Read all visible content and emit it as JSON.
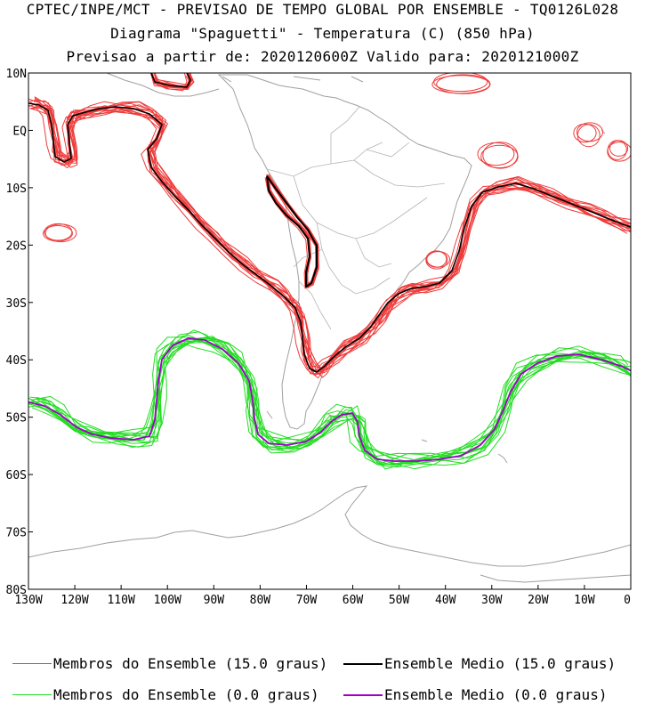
{
  "header": {
    "line1": "CPTEC/INPE/MCT - PREVISAO DE TEMPO GLOBAL POR ENSEMBLE - TQ0126L028",
    "line2": "Diagrama \"Spaguetti\" - Temperatura (C) (850 hPa)",
    "line3": "Previsao a partir de: 2020120600Z  Valido para: 2020121000Z"
  },
  "map": {
    "lat_labels": [
      "10N",
      "EQ",
      "10S",
      "20S",
      "30S",
      "40S",
      "50S",
      "60S",
      "70S",
      "80S"
    ],
    "lat_values": [
      10,
      0,
      -10,
      -20,
      -30,
      -40,
      -50,
      -60,
      -70,
      -80
    ],
    "lon_labels": [
      "130W",
      "120W",
      "110W",
      "100W",
      "90W",
      "80W",
      "70W",
      "60W",
      "50W",
      "40W",
      "30W",
      "20W",
      "10W",
      "0"
    ],
    "lon_values": [
      -130,
      -120,
      -110,
      -100,
      -90,
      -80,
      -70,
      -60,
      -50,
      -40,
      -30,
      -20,
      -10,
      0
    ],
    "lon_range": [
      -130,
      0
    ],
    "lat_range": [
      -80,
      10
    ],
    "colors": {
      "members_15": "#ef3b3b",
      "mean_15": "#000000",
      "members_0": "#22dd22",
      "mean_0": "#a000c8",
      "coast": "#a0a0a0"
    }
  },
  "legend": {
    "members_15": "Membros do Ensemble (15.0 graus)",
    "mean_15": "Ensemble Medio (15.0 graus)",
    "members_0": "Membros do Ensemble (0.0 graus)",
    "mean_0": "Ensemble Medio (0.0 graus)"
  }
}
